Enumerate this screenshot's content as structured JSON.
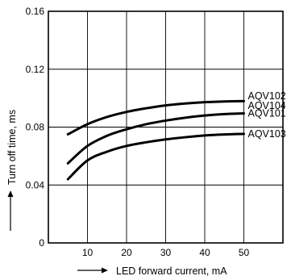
{
  "chart_data": {
    "type": "line",
    "xlabel": "LED forward current, mA",
    "ylabel": "Turn off time, ms",
    "xlim": [
      0,
      60
    ],
    "ylim": [
      0,
      0.16
    ],
    "grid": true,
    "x_ticks": [
      10,
      20,
      30,
      40,
      50
    ],
    "x_tick_labels": [
      "10",
      "20",
      "30",
      "40",
      "50"
    ],
    "y_ticks": [
      0,
      0.04,
      0.08,
      0.12,
      0.16
    ],
    "y_tick_labels": [
      "0",
      "0.04",
      "0.08",
      "0.12",
      "0.16"
    ],
    "series": [
      {
        "name": "AQV102\nAQV104",
        "x": [
          5,
          10,
          15,
          20,
          25,
          30,
          35,
          40,
          45,
          50
        ],
        "y": [
          0.075,
          0.082,
          0.087,
          0.0905,
          0.093,
          0.095,
          0.0963,
          0.0972,
          0.0977,
          0.098
        ]
      },
      {
        "name": "AQV101",
        "x": [
          5,
          10,
          15,
          20,
          25,
          30,
          35,
          40,
          45,
          50
        ],
        "y": [
          0.055,
          0.067,
          0.074,
          0.0785,
          0.082,
          0.0845,
          0.0865,
          0.088,
          0.089,
          0.0895
        ]
      },
      {
        "name": "AQV103",
        "x": [
          5,
          10,
          15,
          20,
          25,
          30,
          35,
          40,
          45,
          50
        ],
        "y": [
          0.044,
          0.057,
          0.063,
          0.067,
          0.0695,
          0.0715,
          0.073,
          0.0742,
          0.0749,
          0.0753
        ]
      }
    ],
    "series_label_lines": [
      [
        "AQV102",
        "AQV104"
      ],
      [
        "AQV101"
      ],
      [
        "AQV103"
      ]
    ]
  }
}
